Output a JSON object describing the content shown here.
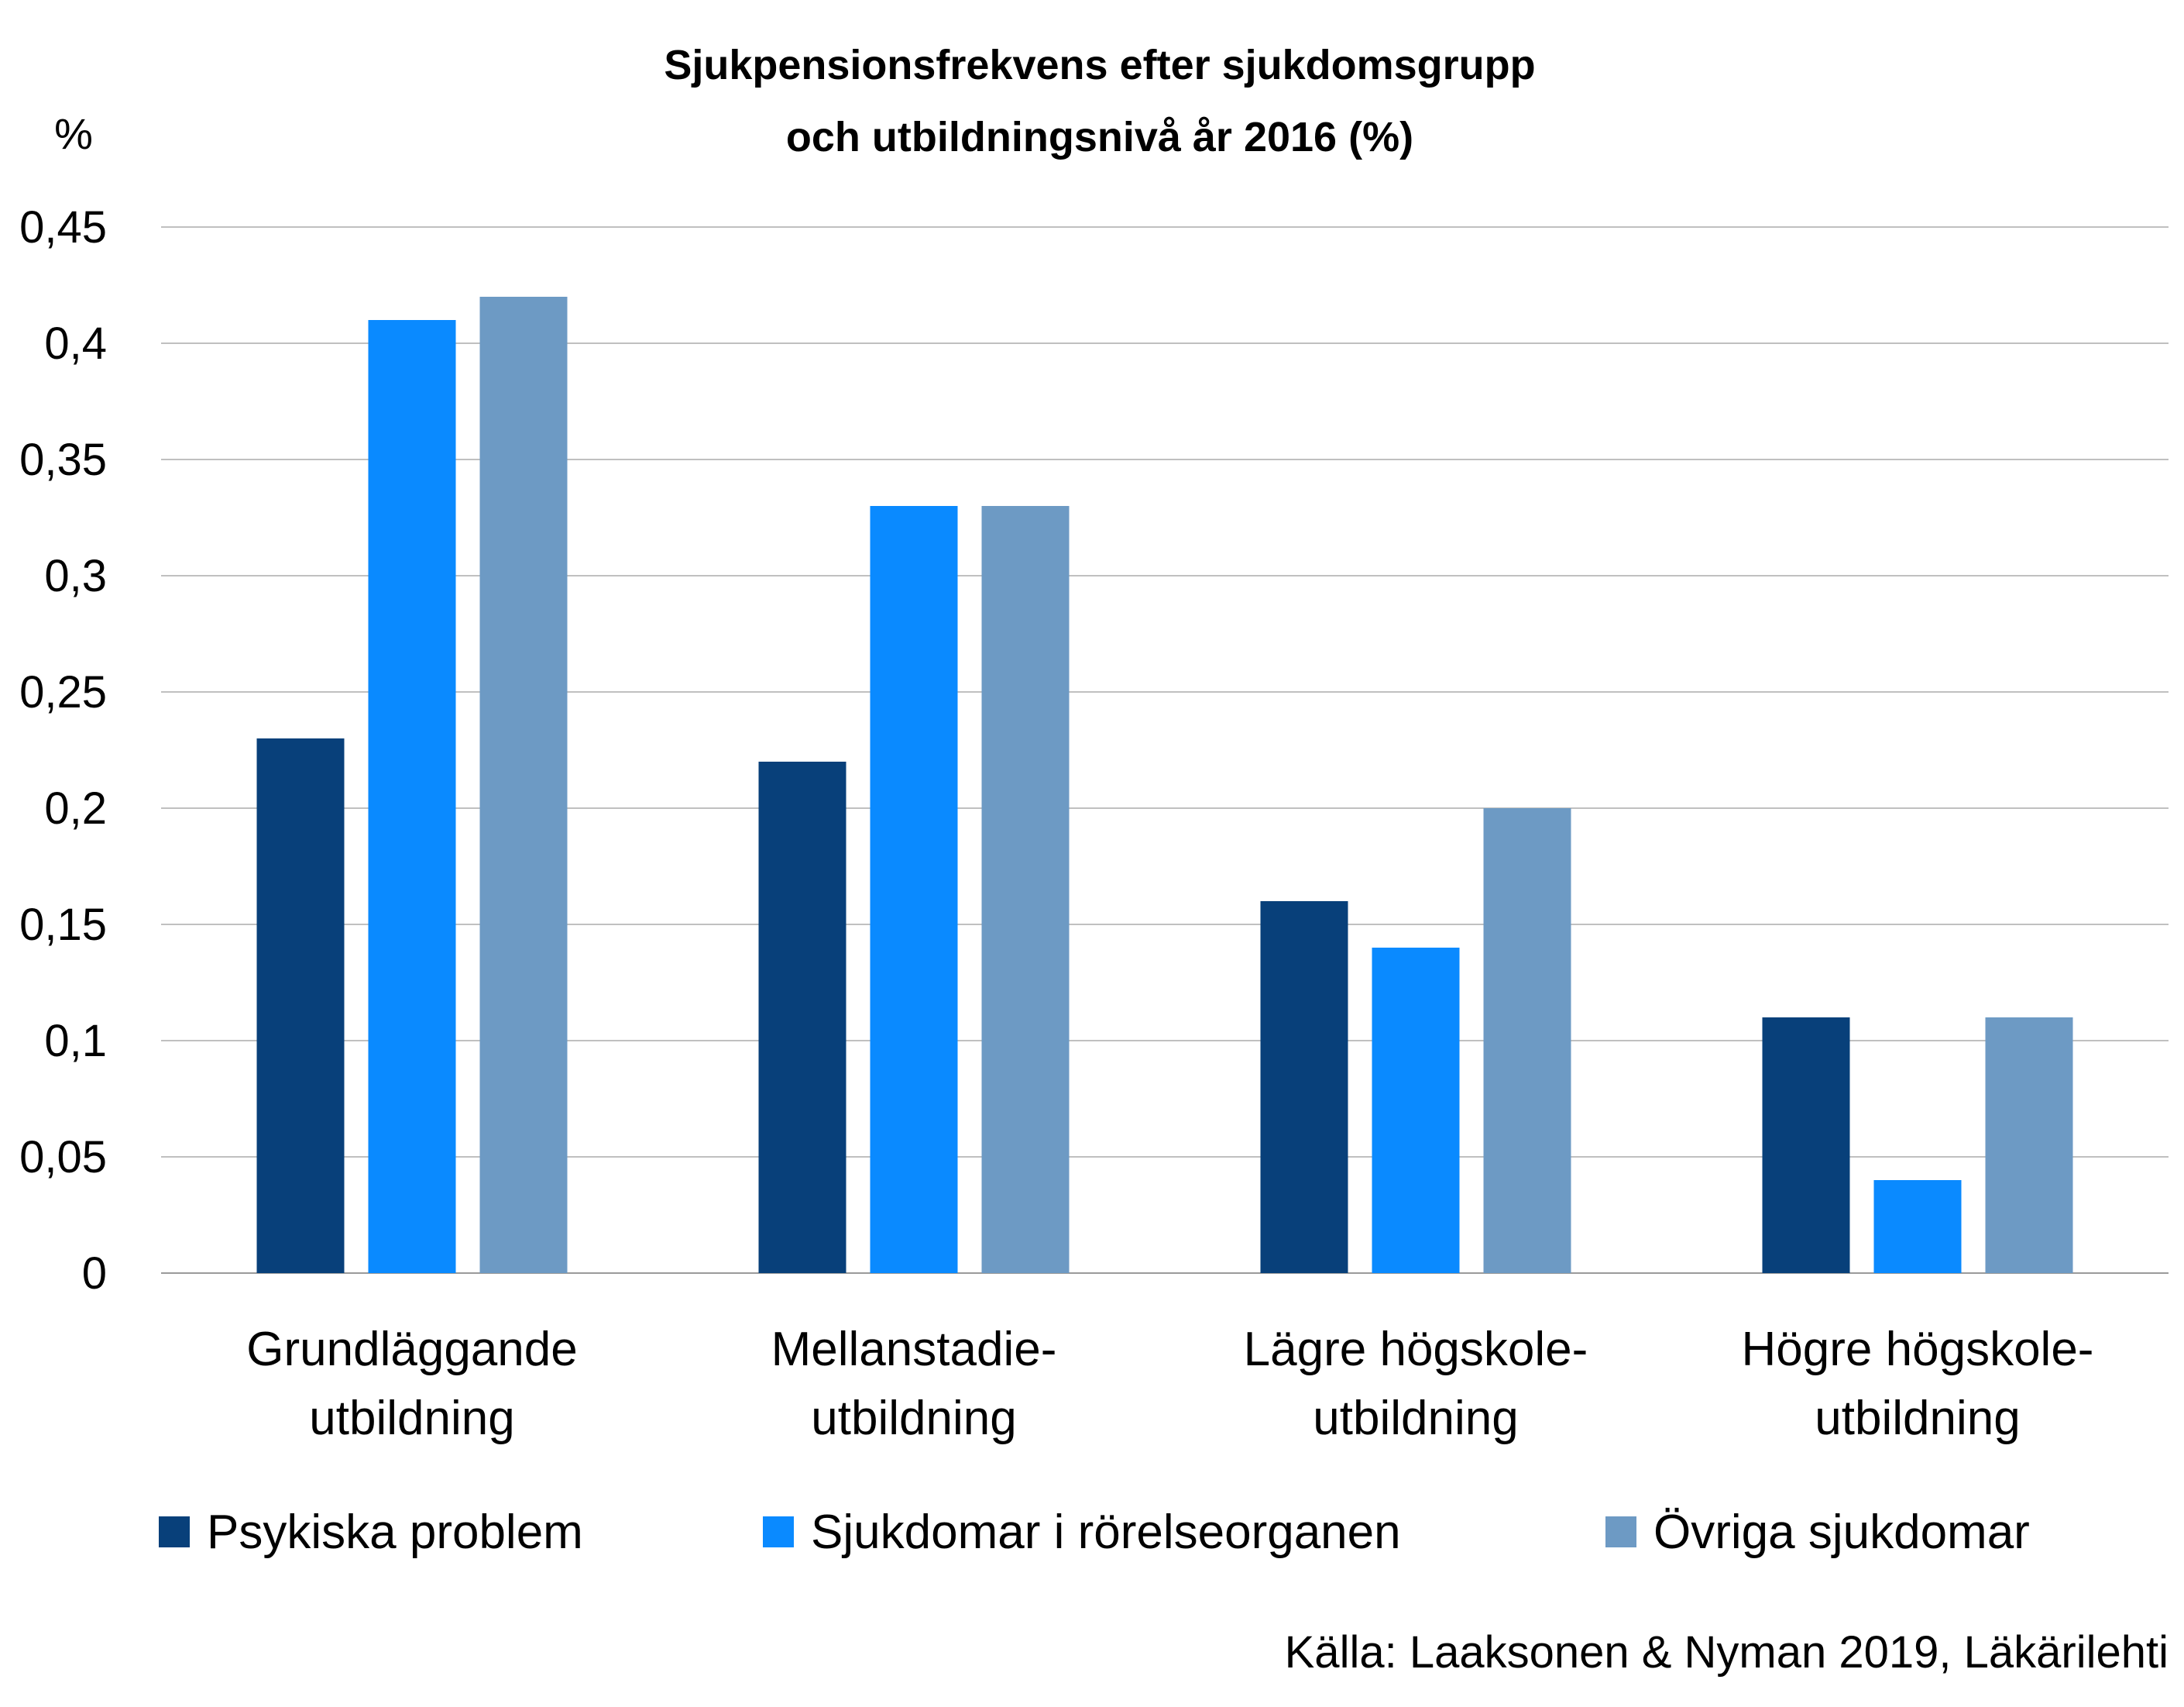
{
  "chart_data": {
    "type": "bar",
    "title": [
      "Sjukpensionsfrekvens efter sjukdomsgrupp",
      "och utbildningsnivå år 2016 (%)"
    ],
    "ylabel": "%",
    "xlabel": "",
    "ylim": [
      0,
      0.45
    ],
    "yticks": [
      0,
      0.05,
      0.1,
      0.15,
      0.2,
      0.25,
      0.3,
      0.35,
      0.4,
      0.45
    ],
    "ytick_labels": [
      "0",
      "0,05",
      "0,1",
      "0,15",
      "0,2",
      "0,25",
      "0,3",
      "0,35",
      "0,4",
      "0,45"
    ],
    "categories": [
      [
        "Grundläggande",
        "utbildning"
      ],
      [
        "Mellanstadie-",
        "utbildning"
      ],
      [
        "Lägre högskole-",
        "utbildning"
      ],
      [
        "Högre högskole-",
        "utbildning"
      ]
    ],
    "series": [
      {
        "name": "Psykiska problem",
        "color": "#08407a",
        "values": [
          0.23,
          0.22,
          0.16,
          0.11
        ]
      },
      {
        "name": "Sjukdomar i rörelseorganen",
        "color": "#0a8aff",
        "values": [
          0.41,
          0.33,
          0.14,
          0.04
        ]
      },
      {
        "name": "Övriga sjukdomar",
        "color": "#6d9ac4",
        "values": [
          0.42,
          0.33,
          0.2,
          0.11
        ]
      }
    ],
    "grid": true,
    "legend_position": "bottom",
    "source": "Källa: Laaksonen & Nyman 2019, Läkärilehti"
  }
}
